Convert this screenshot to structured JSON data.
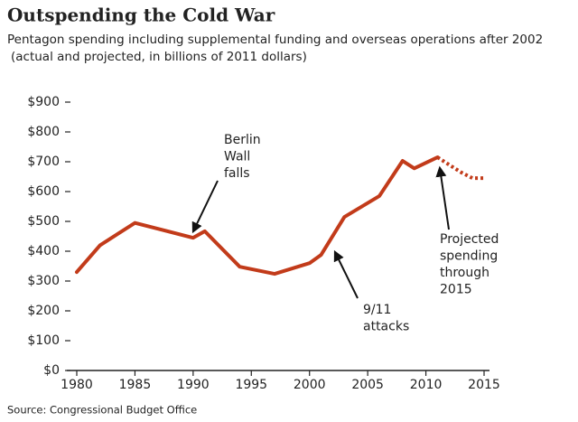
{
  "chart_data": {
    "type": "line",
    "title": "Outspending the Cold War",
    "subtitle": [
      "Pentagon spending including supplemental funding and overseas operations after 2002",
      "(actual and projected, in billions of 2011 dollars)"
    ],
    "source": "Source: Congressional Budget Office",
    "series": [
      {
        "name": "Actual",
        "color": "#c23b1a",
        "style": "solid",
        "x": [
          1980,
          1982,
          1985,
          1990,
          1991,
          1994,
          1997,
          2000,
          2001,
          2003,
          2006,
          2008,
          2009,
          2011
        ],
        "values": [
          330,
          420,
          495,
          445,
          467,
          348,
          324,
          360,
          388,
          515,
          585,
          703,
          678,
          715
        ]
      },
      {
        "name": "Projected",
        "color": "#c23b1a",
        "style": "dotted",
        "x": [
          2011,
          2012,
          2013,
          2014,
          2015
        ],
        "values": [
          715,
          690,
          665,
          645,
          645
        ]
      }
    ],
    "annotations": [
      {
        "text": [
          "Berlin",
          "Wall",
          "falls"
        ]
      },
      {
        "text": [
          "9/11",
          "attacks"
        ]
      },
      {
        "text": [
          "Projected",
          "spending",
          "through",
          "2015"
        ]
      }
    ],
    "xlim": [
      1980,
      2015
    ],
    "xticks": [
      1980,
      1985,
      1990,
      1995,
      2000,
      2005,
      2010,
      2015
    ],
    "ylim": [
      0,
      900
    ],
    "yticks": [
      {
        "value": 0,
        "label": "$0"
      },
      {
        "value": 100,
        "label": "$100"
      },
      {
        "value": 200,
        "label": "$200"
      },
      {
        "value": 300,
        "label": "$300"
      },
      {
        "value": 400,
        "label": "$400"
      },
      {
        "value": 500,
        "label": "$500"
      },
      {
        "value": 600,
        "label": "$600"
      },
      {
        "value": 700,
        "label": "$700"
      },
      {
        "value": 800,
        "label": "$800"
      },
      {
        "value": 900,
        "label": "$900"
      }
    ]
  }
}
